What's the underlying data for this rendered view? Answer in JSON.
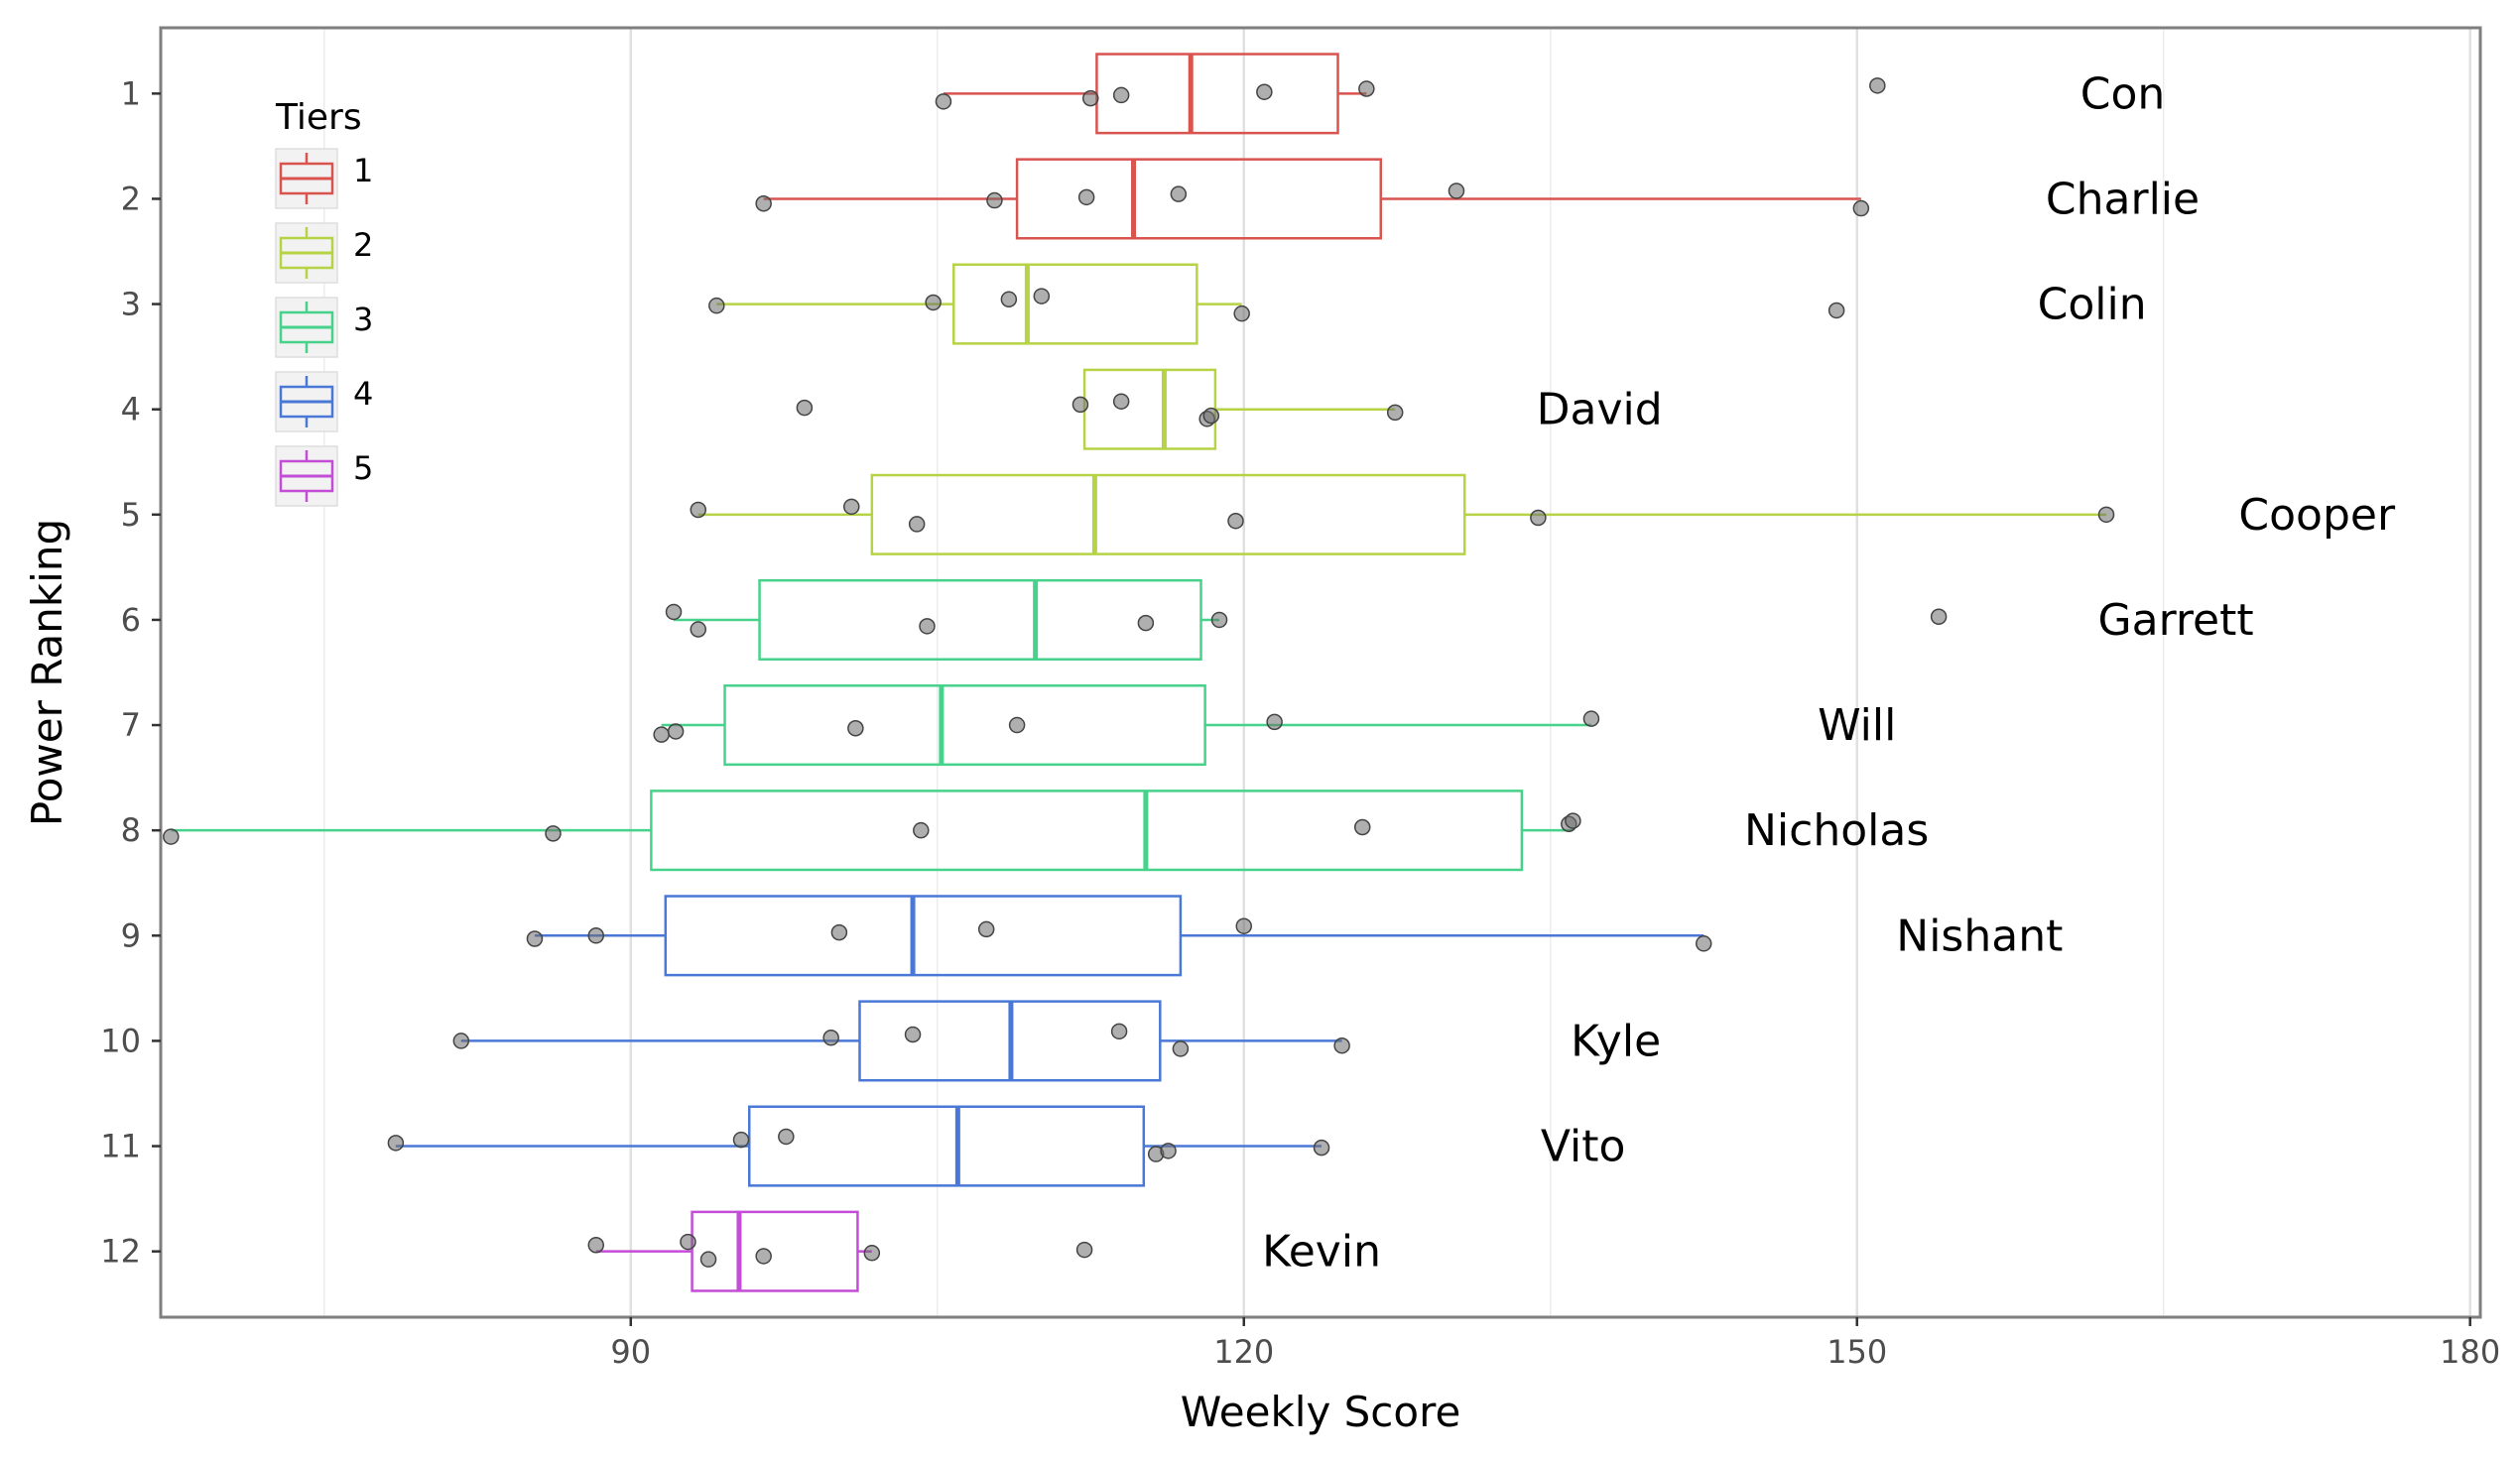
{
  "chart_data": {
    "type": "boxplot",
    "title": "",
    "xlabel": "Weekly Score",
    "ylabel": "Power Ranking",
    "xlim": [
      67,
      180.5
    ],
    "x_ticks": [
      90,
      120,
      150,
      180
    ],
    "y_ticks": [
      1,
      2,
      3,
      4,
      5,
      6,
      7,
      8,
      9,
      10,
      11,
      12
    ],
    "grid": true,
    "legend": {
      "title": "Tiers",
      "position": "top-left",
      "entries": [
        {
          "label": "1",
          "color": "#d9534f"
        },
        {
          "label": "2",
          "color": "#b5d345"
        },
        {
          "label": "3",
          "color": "#46d28a"
        },
        {
          "label": "4",
          "color": "#4a78d6"
        },
        {
          "label": "5",
          "color": "#c34dd6"
        }
      ]
    },
    "series": [
      {
        "rank": 1,
        "label": "Con",
        "tier": 1,
        "whisker_low": 105.3,
        "q1": 112.8,
        "median": 117.4,
        "q3": 124.6,
        "whisker_high": 126.0,
        "label_x": 163,
        "points": [
          105.3,
          112.5,
          114.0,
          121.0,
          126.0,
          151.0
        ]
      },
      {
        "rank": 2,
        "label": "Charlie",
        "tier": 1,
        "whisker_low": 96.5,
        "q1": 108.9,
        "median": 114.6,
        "q3": 126.7,
        "whisker_high": 150.2,
        "label_x": 163,
        "points": [
          96.5,
          107.8,
          112.3,
          116.8,
          130.4,
          150.2
        ]
      },
      {
        "rank": 3,
        "label": "Colin",
        "tier": 2,
        "whisker_low": 94.2,
        "q1": 105.8,
        "median": 109.4,
        "q3": 117.7,
        "whisker_high": 119.9,
        "label_x": 161.5,
        "points": [
          94.2,
          104.8,
          108.5,
          110.1,
          119.9,
          149.0
        ]
      },
      {
        "rank": 4,
        "label": "David",
        "tier": 2,
        "whisker_low": 112.2,
        "q1": 112.2,
        "median": 116.1,
        "q3": 118.6,
        "whisker_high": 127.4,
        "label_x": 137.4,
        "points": [
          98.5,
          112.0,
          114.0,
          118.2,
          118.4,
          127.4
        ]
      },
      {
        "rank": 5,
        "label": "Cooper",
        "tier": 2,
        "whisker_low": 93.3,
        "q1": 101.8,
        "median": 112.7,
        "q3": 130.8,
        "whisker_high": 162.2,
        "label_x": 172.5,
        "points": [
          93.3,
          100.8,
          104.0,
          119.6,
          134.4,
          162.2
        ]
      },
      {
        "rank": 6,
        "label": "Garrett",
        "tier": 3,
        "whisker_low": 92.1,
        "q1": 96.3,
        "median": 109.8,
        "q3": 117.9,
        "whisker_high": 118.8,
        "label_x": 165.6,
        "points": [
          92.1,
          93.3,
          104.5,
          115.2,
          118.8,
          154.0
        ]
      },
      {
        "rank": 7,
        "label": "Will",
        "tier": 3,
        "whisker_low": 91.5,
        "q1": 94.6,
        "median": 105.2,
        "q3": 118.1,
        "whisker_high": 137.0,
        "label_x": 150.0,
        "points": [
          91.5,
          92.2,
          101.0,
          108.9,
          121.5,
          137.0
        ]
      },
      {
        "rank": 8,
        "label": "Nicholas",
        "tier": 3,
        "whisker_low": 67.5,
        "q1": 91.0,
        "median": 115.2,
        "q3": 133.6,
        "whisker_high": 136.1,
        "label_x": 149.0,
        "points": [
          67.5,
          86.2,
          104.2,
          125.8,
          135.9,
          136.1
        ]
      },
      {
        "rank": 9,
        "label": "Nishant",
        "tier": 4,
        "whisker_low": 85.3,
        "q1": 91.7,
        "median": 103.8,
        "q3": 116.9,
        "whisker_high": 142.5,
        "label_x": 156.0,
        "points": [
          85.3,
          88.3,
          100.2,
          107.4,
          120.0,
          142.5
        ]
      },
      {
        "rank": 10,
        "label": "Kyle",
        "tier": 4,
        "whisker_low": 81.7,
        "q1": 101.2,
        "median": 108.6,
        "q3": 115.9,
        "whisker_high": 124.8,
        "label_x": 138.2,
        "points": [
          81.7,
          99.8,
          103.8,
          113.9,
          116.9,
          124.8
        ]
      },
      {
        "rank": 11,
        "label": "Vito",
        "tier": 4,
        "whisker_low": 78.5,
        "q1": 95.8,
        "median": 106.0,
        "q3": 115.1,
        "whisker_high": 123.8,
        "label_x": 136.6,
        "points": [
          78.5,
          95.4,
          97.6,
          115.7,
          116.3,
          123.8
        ]
      },
      {
        "rank": 12,
        "label": "Kevin",
        "tier": 5,
        "whisker_low": 88.3,
        "q1": 93.0,
        "median": 95.3,
        "q3": 101.1,
        "whisker_high": 101.8,
        "label_x": 123.8,
        "points": [
          88.3,
          92.8,
          93.8,
          96.5,
          101.8,
          112.2
        ]
      }
    ]
  }
}
